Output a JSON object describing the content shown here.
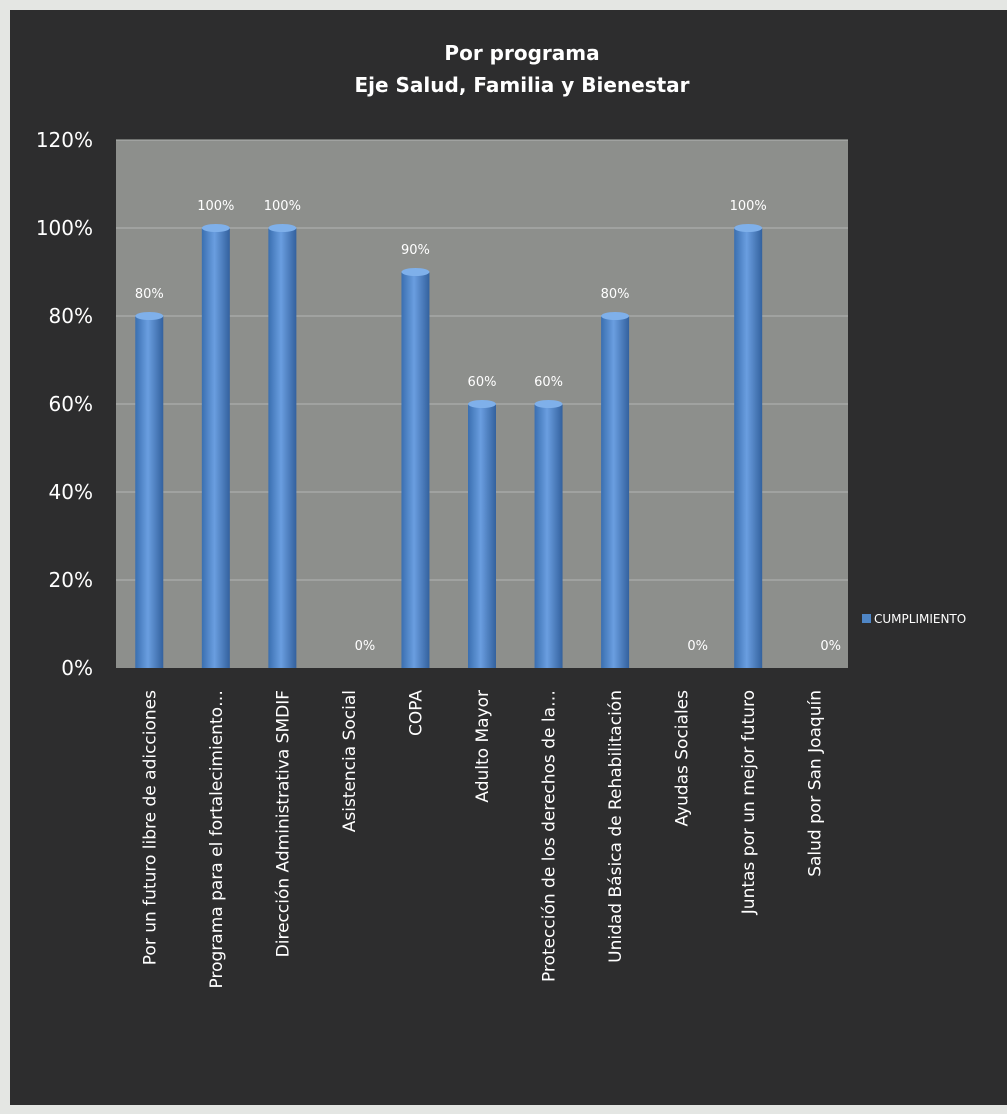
{
  "chart_data": {
    "type": "bar",
    "title": "Por programa",
    "subtitle": "Eje Salud, Familia y Bienestar",
    "categories": [
      "Por un futuro libre de adicciones",
      "Programa para el fortalecimiento…",
      "Dirección Administrativa SMDIF",
      "Asistencia Social",
      "COPA",
      "Adulto Mayor",
      "Protección de los derechos de la…",
      "Unidad Básica de Rehabilitación",
      "Ayudas Sociales",
      "Juntas por un mejor futuro",
      "Salud por San Joaquín"
    ],
    "series": [
      {
        "name": "CUMPLIMIENTO",
        "values": [
          0.8,
          1.0,
          1.0,
          0.0,
          0.9,
          0.6,
          0.6,
          0.8,
          0.0,
          1.0,
          0.0
        ],
        "data_labels": [
          "80%",
          "100%",
          "100%",
          "0%",
          "90%",
          "60%",
          "60%",
          "80%",
          "0%",
          "100%",
          "0%"
        ]
      }
    ],
    "ylim": [
      0,
      1.2
    ],
    "yticks": [
      "0%",
      "20%",
      "40%",
      "60%",
      "80%",
      "100%",
      "120%"
    ],
    "grid": true,
    "legend": "right",
    "colors": {
      "bar": "#4f86c6",
      "plot_background": "#8d8f8c",
      "background": "#2d2d2e",
      "text": "#ffffff"
    }
  }
}
